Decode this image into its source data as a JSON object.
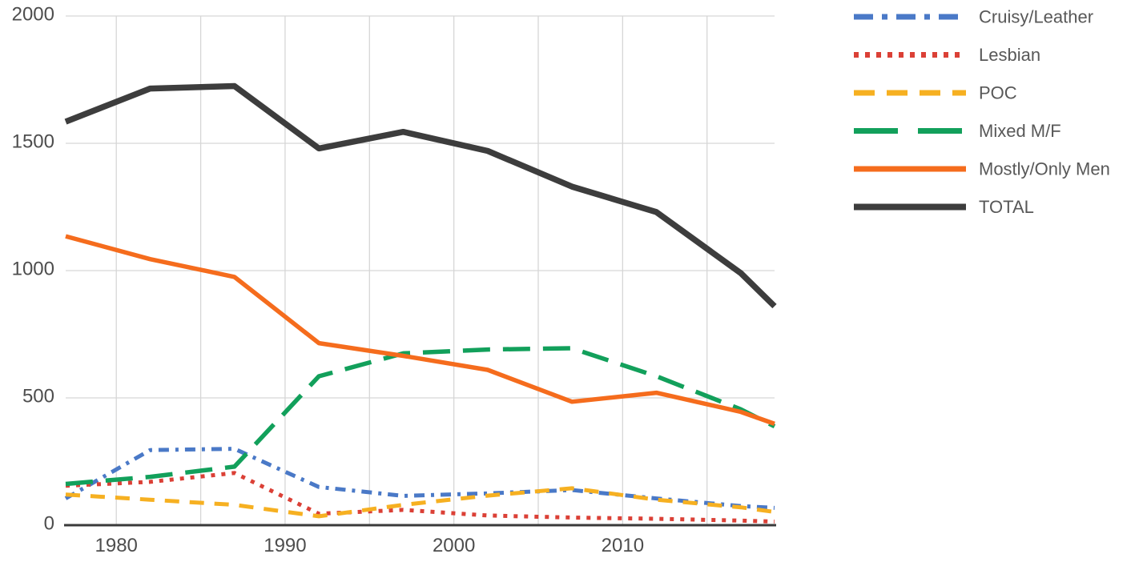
{
  "chart_data": {
    "type": "line",
    "title": "",
    "xlabel": "",
    "ylabel": "",
    "grid": true,
    "legend_position": "top-right",
    "x_range": [
      1977,
      2019
    ],
    "y_range": [
      0,
      2000
    ],
    "x": [
      1977,
      1982,
      1987,
      1992,
      1997,
      2002,
      2007,
      2012,
      2017,
      2019
    ],
    "x_tick_years": [
      1980,
      1990,
      2000,
      2010
    ],
    "x_tick_labels": [
      "1980",
      "1990",
      "2000",
      "2010"
    ],
    "x_gridline_years": [
      1980,
      1985,
      1990,
      1995,
      2000,
      2005,
      2010,
      2015
    ],
    "y_tick_values": [
      0,
      500,
      1000,
      1500,
      2000
    ],
    "y_tick_labels": [
      "0",
      "500",
      "1000",
      "1500",
      "2000"
    ],
    "series": [
      {
        "name": "Cruisy/Leather",
        "key": "cruisy-leather",
        "color": "#4a79c7",
        "line_style": "dash-dot",
        "values": [
          105,
          295,
          300,
          150,
          115,
          125,
          138,
          105,
          75,
          68
        ]
      },
      {
        "name": "Lesbian",
        "key": "lesbian",
        "color": "#db4036",
        "line_style": "dotted",
        "values": [
          155,
          170,
          205,
          45,
          60,
          38,
          30,
          25,
          18,
          14
        ]
      },
      {
        "name": "POC",
        "key": "poc",
        "color": "#f6b021",
        "line_style": "dashed",
        "values": [
          120,
          100,
          80,
          35,
          80,
          116,
          145,
          100,
          70,
          52
        ]
      },
      {
        "name": "Mixed M/F",
        "key": "mixed-mf",
        "color": "#12a05b",
        "line_style": "long-dash",
        "values": [
          162,
          190,
          230,
          585,
          675,
          690,
          695,
          585,
          455,
          388
        ]
      },
      {
        "name": "Mostly/Only Men",
        "key": "mostly-only-men",
        "color": "#f56c1d",
        "line_style": "solid",
        "values": [
          1135,
          1045,
          975,
          715,
          665,
          610,
          485,
          520,
          445,
          398
        ]
      },
      {
        "name": "TOTAL",
        "key": "total",
        "color": "#3d3d3d",
        "line_style": "solid-thick",
        "values": [
          1585,
          1715,
          1725,
          1480,
          1545,
          1470,
          1330,
          1230,
          990,
          860
        ]
      }
    ]
  },
  "style_colors": {
    "background": "#ffffff",
    "gridline": "#d6d6d6",
    "axis_line": "#3a3a3a",
    "tick_text": "#4d4d4d",
    "legend_text": "#585858"
  }
}
